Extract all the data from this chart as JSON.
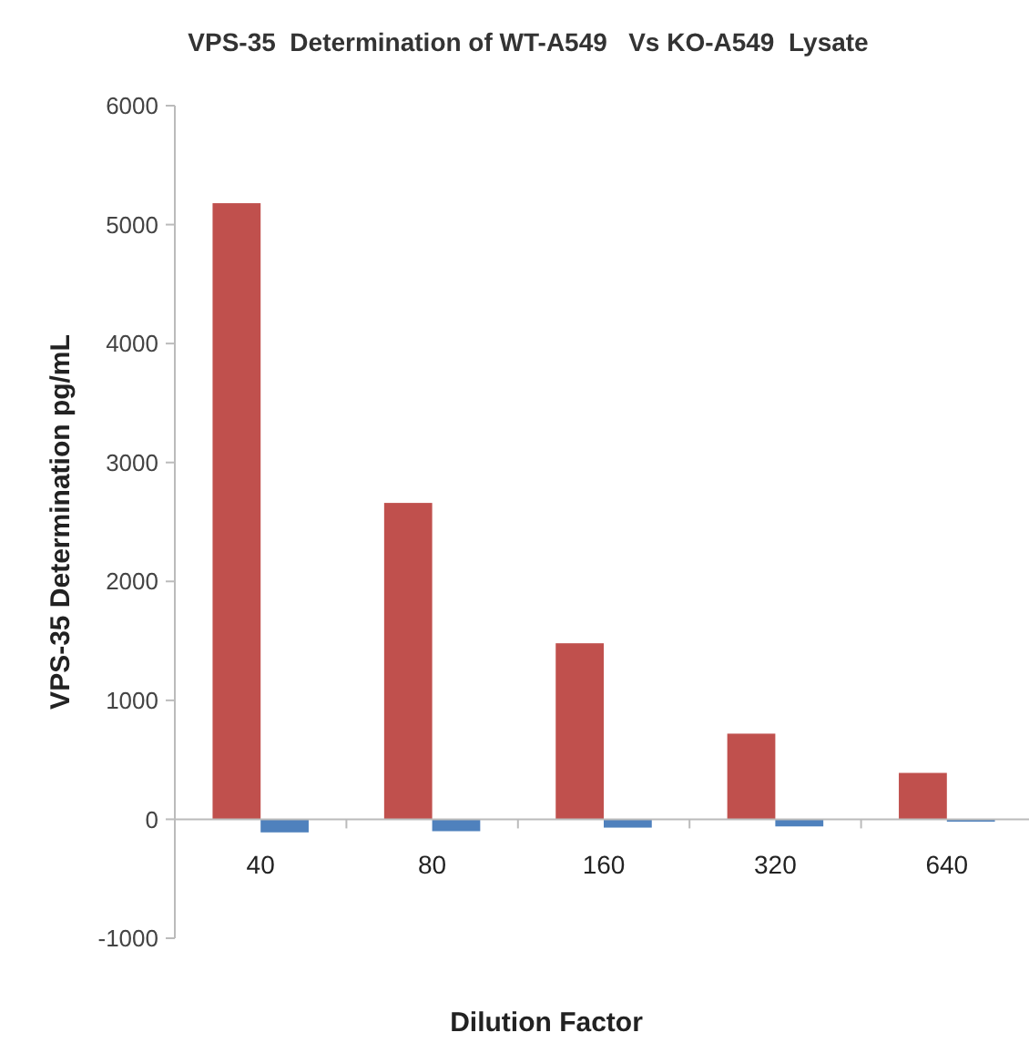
{
  "chart_data": {
    "type": "bar",
    "title": "VPS-35  Determination of WT-A549   Vs KO-A549  Lysate",
    "xlabel": "Dilution Factor",
    "ylabel": "VPS-35 Determination pg/mL",
    "categories": [
      "40",
      "80",
      "160",
      "320",
      "640"
    ],
    "series": [
      {
        "color": "#c0504d",
        "values": [
          5180,
          2660,
          1480,
          720,
          390
        ]
      },
      {
        "color": "#4f81bd",
        "values": [
          -110,
          -100,
          -70,
          -60,
          -20
        ]
      }
    ],
    "ylim": [
      -1000,
      6000
    ],
    "yticks": [
      -1000,
      0,
      1000,
      2000,
      3000,
      4000,
      5000,
      6000
    ]
  }
}
